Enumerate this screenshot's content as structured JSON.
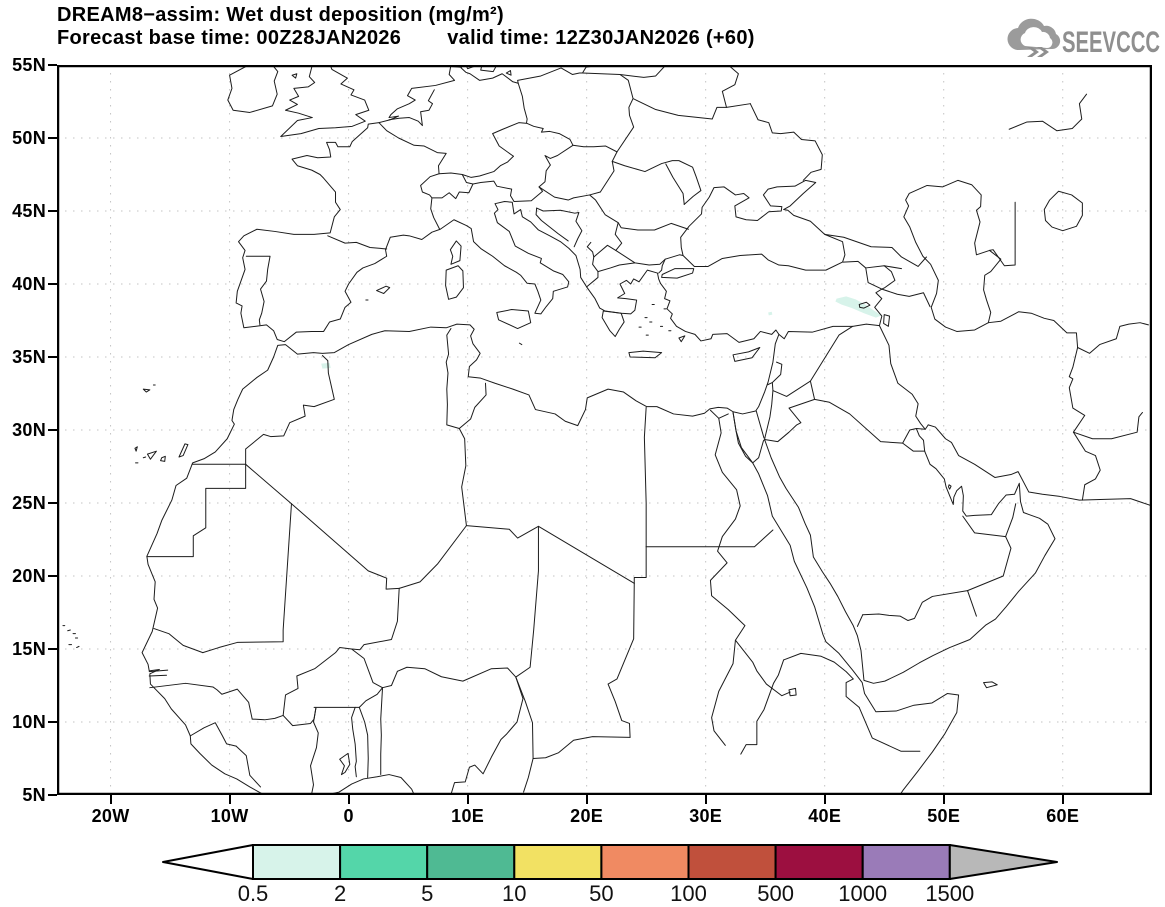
{
  "header": {
    "line1": "DREAM8−assim: Wet dust deposition (mg/m²)",
    "line2_left": "Forecast base time: 00Z28JAN2026",
    "line2_right": "valid time: 12Z30JAN2026 (+60)"
  },
  "logo": {
    "text": "SEEVCCC",
    "color": "#8f8f8f",
    "icon": "cloud-icon"
  },
  "map": {
    "projection": "equirectangular",
    "domain": {
      "lon_min": -24.5,
      "lon_max": 67.5,
      "lat_min": 5,
      "lat_max": 55
    },
    "lat_ticks": [
      {
        "label": "55N",
        "lat": 55
      },
      {
        "label": "50N",
        "lat": 50
      },
      {
        "label": "45N",
        "lat": 45
      },
      {
        "label": "40N",
        "lat": 40
      },
      {
        "label": "35N",
        "lat": 35
      },
      {
        "label": "30N",
        "lat": 30
      },
      {
        "label": "25N",
        "lat": 25
      },
      {
        "label": "20N",
        "lat": 20
      },
      {
        "label": "15N",
        "lat": 15
      },
      {
        "label": "10N",
        "lat": 10
      },
      {
        "label": "5N",
        "lat": 5
      }
    ],
    "lon_ticks": [
      {
        "label": "20W",
        "lon": -20
      },
      {
        "label": "10W",
        "lon": -10
      },
      {
        "label": "0",
        "lon": 0
      },
      {
        "label": "10E",
        "lon": 10
      },
      {
        "label": "20E",
        "lon": 20
      },
      {
        "label": "30E",
        "lon": 30
      },
      {
        "label": "40E",
        "lon": 40
      },
      {
        "label": "50E",
        "lon": 50
      },
      {
        "label": "60E",
        "lon": 60
      }
    ],
    "grid": {
      "lat_step_deg": 5,
      "lon_step_deg": 10,
      "style": "dotted"
    }
  },
  "colorbar": {
    "unit": "mg/m²",
    "tick_labels": [
      "0.5",
      "2",
      "5",
      "10",
      "50",
      "100",
      "500",
      "1000",
      "1500"
    ],
    "colors": [
      "#d7f3ea",
      "#54d6a9",
      "#4fba93",
      "#f2e163",
      "#f08a62",
      "#c0503c",
      "#9c0f40",
      "#9a7bb8"
    ],
    "left_arrow_color": "#ffffff",
    "right_arrow_color": "#b8b8b8",
    "outline_color": "#000000"
  },
  "chart_data": {
    "type": "map",
    "title": "DREAM8−assim: Wet dust deposition (mg/m²)",
    "forecast_base_time": "00Z28JAN2026",
    "valid_time": "12Z30JAN2026 (+60)",
    "projection": "equirectangular",
    "lon_range": [
      -24.5,
      67.5
    ],
    "lat_range": [
      5,
      55
    ],
    "scale_values_mg_m2": [
      0.5,
      2,
      5,
      10,
      50,
      100,
      500,
      1000,
      1500
    ],
    "deposition_regions": [
      {
        "area": "eastern Turkey (Lake Van region)",
        "approx_lon": [
          40.9,
          44.8
        ],
        "approx_lat": [
          37.7,
          39.2
        ],
        "value_range_mg_m2": "0.5–2"
      },
      {
        "area": "small spot, south-central Turkey",
        "approx_lon": [
          35.2,
          35.6
        ],
        "approx_lat": [
          37.8,
          38.1
        ],
        "value_range_mg_m2": "0.5–2"
      },
      {
        "area": "NE Morocco / Algeria border",
        "approx_lon": [
          -2.3,
          -1.5
        ],
        "approx_lat": [
          34.1,
          34.6
        ],
        "value_range_mg_m2": "0.5–2"
      }
    ]
  }
}
